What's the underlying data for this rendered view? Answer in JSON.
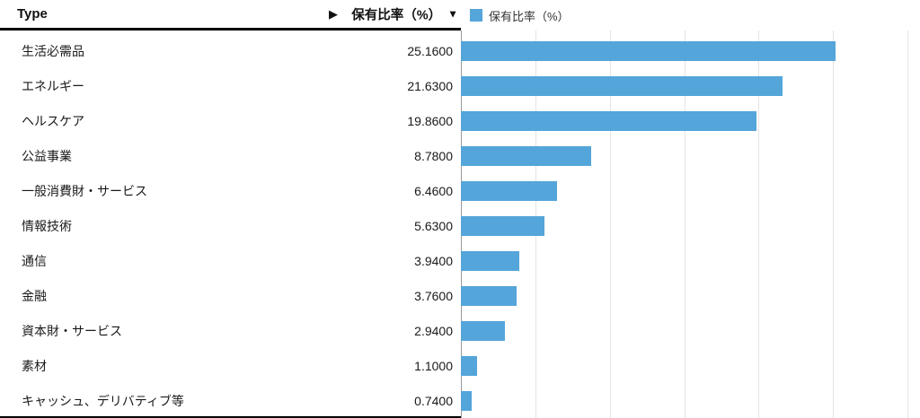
{
  "header": {
    "type_label": "Type",
    "expand_arrow": "▶",
    "value_label": "保有比率（%）",
    "sort_arrow": "▼"
  },
  "legend": {
    "label": "保有比率（%）"
  },
  "chart_data": {
    "type": "bar",
    "orientation": "horizontal",
    "title": "",
    "series_name": "保有比率（%）",
    "categories": [
      "生活必需品",
      "エネルギー",
      "ヘルスケア",
      "公益事業",
      "一般消費財・サービス",
      "情報技術",
      "通信",
      "金融",
      "資本財・サービス",
      "素材",
      "キャッシュ、デリバティブ等"
    ],
    "values": [
      25.16,
      21.63,
      19.86,
      8.78,
      6.46,
      5.63,
      3.94,
      3.76,
      2.94,
      1.1,
      0.74
    ],
    "value_labels": [
      "25.1600",
      "21.6300",
      "19.8600",
      "8.7800",
      "6.4600",
      "5.6300",
      "3.9400",
      "3.7600",
      "2.9400",
      "1.1000",
      "0.7400"
    ],
    "xlim": [
      0,
      30
    ],
    "tick_step": 5,
    "grid": true,
    "legend_position": "top",
    "bar_color": "#54A5DA",
    "gridline_color": "#e3e3e3",
    "axis_color": "#9a9a9a"
  }
}
